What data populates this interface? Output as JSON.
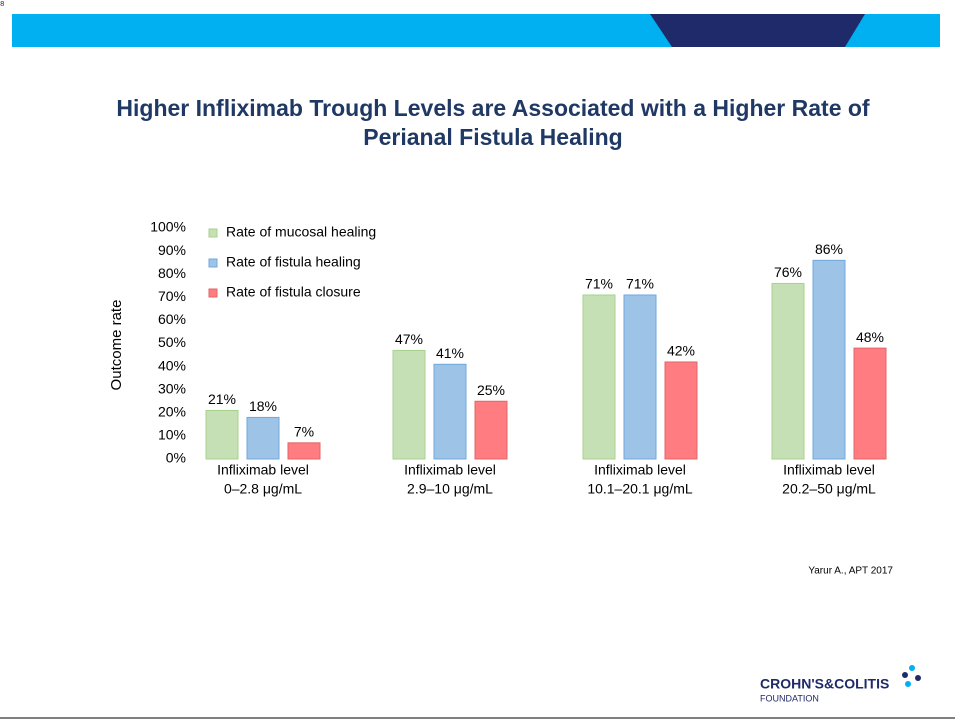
{
  "page_number": "8",
  "chart_data": {
    "type": "bar",
    "title": [
      "Higher Infliximab Trough Levels are Associated with a Higher Rate of",
      "Perianal Fistula Healing"
    ],
    "y_label": "Outcome rate",
    "categories": [
      [
        "Infliximab level",
        "0–2.8 μg/mL"
      ],
      [
        "Infliximab level",
        "2.9–10 μg/mL"
      ],
      [
        "Infliximab level",
        "10.1–20.1 μg/mL"
      ],
      [
        "Infliximab level",
        "20.2–50 μg/mL"
      ]
    ],
    "series": [
      {
        "name": "Rate of mucosal healing",
        "color": "#c5e0b4",
        "values": [
          21,
          47,
          71,
          76
        ],
        "value_labels": [
          "21%",
          "47%",
          "71%",
          "76%"
        ]
      },
      {
        "name": "Rate of fistula healing",
        "color": "#9dc3e6",
        "values": [
          18,
          41,
          71,
          86
        ],
        "value_labels": [
          "18%",
          "41%",
          "71%",
          "86%"
        ]
      },
      {
        "name": "Rate of fistula closure",
        "color": "#ff7c80",
        "values": [
          7,
          25,
          42,
          48
        ],
        "value_labels": [
          "7%",
          "25%",
          "42%",
          "48%"
        ]
      }
    ],
    "ylim": [
      0,
      100
    ],
    "yticks": [
      {
        "value": 0,
        "label": "0%"
      },
      {
        "value": 10,
        "label": "10%"
      },
      {
        "value": 20,
        "label": "20%"
      },
      {
        "value": 30,
        "label": "30%"
      },
      {
        "value": 40,
        "label": "40%"
      },
      {
        "value": 50,
        "label": "50%"
      },
      {
        "value": 60,
        "label": "60%"
      },
      {
        "value": 70,
        "label": "70%"
      },
      {
        "value": 80,
        "label": "80%"
      },
      {
        "value": 90,
        "label": "90%"
      },
      {
        "value": 100,
        "label": "100%"
      }
    ],
    "grid": false,
    "legend": "top-left"
  },
  "citation": "Yarur A., APT 2017",
  "logo": {
    "name": "CROHN'S&COLITIS",
    "subtitle": "FOUNDATION"
  }
}
